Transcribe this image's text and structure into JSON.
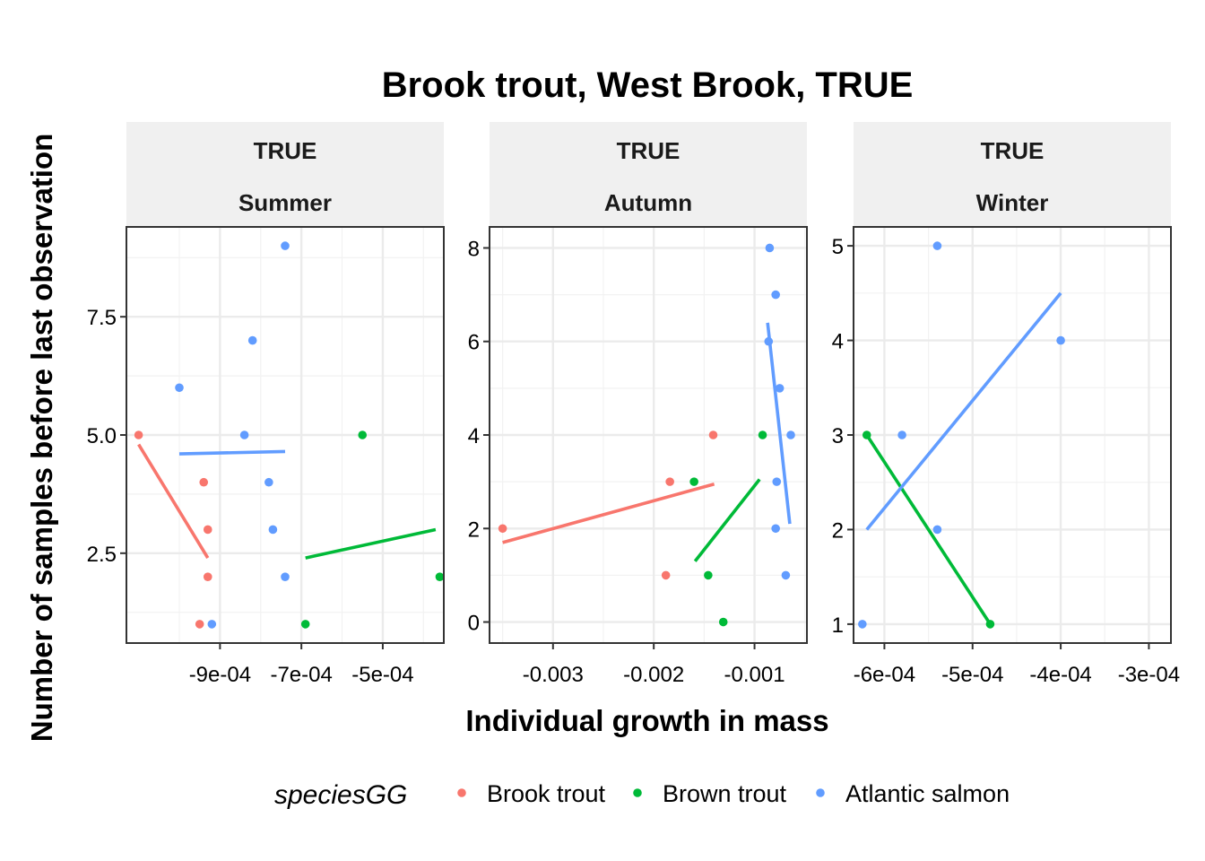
{
  "chart_data": {
    "type": "scatter",
    "title": "Brook trout, West Brook, TRUE",
    "xlabel": "Individual growth in mass",
    "ylabel": "Number of samples before last observation",
    "legend": {
      "title": "speciesGG",
      "placement": "bottom",
      "entries": [
        {
          "name": "Brook trout",
          "color": "#F8766D"
        },
        {
          "name": "Brown trout",
          "color": "#00BA38"
        },
        {
          "name": "Atlantic salmon",
          "color": "#619CFF"
        }
      ]
    },
    "grid": true,
    "panels": [
      {
        "strip_top": "TRUE",
        "strip_bottom": "Summer",
        "xlim": [
          -0.00113,
          -0.00035
        ],
        "ylim": [
          0.6,
          9.4
        ],
        "xticks": [
          {
            "value": -0.0009,
            "label": "-9e-04"
          },
          {
            "value": -0.0007,
            "label": "-7e-04"
          },
          {
            "value": -0.0005,
            "label": "-5e-04"
          }
        ],
        "yticks": [
          {
            "value": 2.5,
            "label": "2.5"
          },
          {
            "value": 5.0,
            "label": "5.0"
          },
          {
            "value": 7.5,
            "label": "7.5"
          }
        ],
        "series": [
          {
            "name": "Brook trout",
            "color": "#F8766D",
            "points": [
              [
                -0.0011,
                5
              ],
              [
                -0.00094,
                4
              ],
              [
                -0.00093,
                3
              ],
              [
                -0.00093,
                2
              ],
              [
                -0.00095,
                1
              ]
            ],
            "fit": [
              [
                -0.0011,
                4.8
              ],
              [
                -0.00093,
                2.4
              ]
            ]
          },
          {
            "name": "Brown trout",
            "color": "#00BA38",
            "points": [
              [
                -0.00055,
                5
              ],
              [
                -0.00069,
                1
              ],
              [
                -0.00036,
                2
              ]
            ],
            "fit": [
              [
                -0.00069,
                2.4
              ],
              [
                -0.00037,
                3.0
              ]
            ]
          },
          {
            "name": "Atlantic salmon",
            "color": "#619CFF",
            "points": [
              [
                -0.00074,
                9
              ],
              [
                -0.00082,
                7
              ],
              [
                -0.001,
                6
              ],
              [
                -0.00084,
                5
              ],
              [
                -0.00078,
                4
              ],
              [
                -0.00077,
                3
              ],
              [
                -0.00074,
                2
              ],
              [
                -0.00092,
                1
              ]
            ],
            "fit": [
              [
                -0.001,
                4.6
              ],
              [
                -0.00074,
                4.65
              ]
            ]
          }
        ]
      },
      {
        "strip_top": "TRUE",
        "strip_bottom": "Autumn",
        "xlim": [
          -0.00363,
          -0.00048
        ],
        "ylim": [
          -0.45,
          8.45
        ],
        "xticks": [
          {
            "value": -0.003,
            "label": "-0.003"
          },
          {
            "value": -0.002,
            "label": "-0.002"
          },
          {
            "value": -0.001,
            "label": "-0.001"
          }
        ],
        "yticks": [
          {
            "value": 0,
            "label": "0"
          },
          {
            "value": 2,
            "label": "2"
          },
          {
            "value": 4,
            "label": "4"
          },
          {
            "value": 6,
            "label": "6"
          },
          {
            "value": 8,
            "label": "8"
          }
        ],
        "series": [
          {
            "name": "Brook trout",
            "color": "#F8766D",
            "points": [
              [
                -0.0035,
                2
              ],
              [
                -0.00184,
                3
              ],
              [
                -0.00188,
                1
              ],
              [
                -0.00141,
                4
              ]
            ],
            "fit": [
              [
                -0.0035,
                1.7
              ],
              [
                -0.0014,
                2.95
              ]
            ]
          },
          {
            "name": "Brown trout",
            "color": "#00BA38",
            "points": [
              [
                -0.0016,
                3
              ],
              [
                -0.00146,
                1
              ],
              [
                -0.00131,
                0
              ],
              [
                -0.00092,
                4
              ]
            ],
            "fit": [
              [
                -0.00159,
                1.3
              ],
              [
                -0.00095,
                3.05
              ]
            ]
          },
          {
            "name": "Atlantic salmon",
            "color": "#619CFF",
            "points": [
              [
                -0.00085,
                8
              ],
              [
                -0.00079,
                7
              ],
              [
                -0.00086,
                6
              ],
              [
                -0.00075,
                5
              ],
              [
                -0.00064,
                4
              ],
              [
                -0.00078,
                3
              ],
              [
                -0.00079,
                2
              ],
              [
                -0.00069,
                1
              ]
            ],
            "fit": [
              [
                -0.00087,
                6.4
              ],
              [
                -0.00065,
                2.1
              ]
            ]
          }
        ]
      },
      {
        "strip_top": "TRUE",
        "strip_bottom": "Winter",
        "xlim": [
          -0.000635,
          -0.000275
        ],
        "ylim": [
          0.8,
          5.2
        ],
        "xticks": [
          {
            "value": -0.0006,
            "label": "-6e-04"
          },
          {
            "value": -0.0005,
            "label": "-5e-04"
          },
          {
            "value": -0.0004,
            "label": "-4e-04"
          },
          {
            "value": -0.0003,
            "label": "-3e-04"
          }
        ],
        "yticks": [
          {
            "value": 1,
            "label": "1"
          },
          {
            "value": 2,
            "label": "2"
          },
          {
            "value": 3,
            "label": "3"
          },
          {
            "value": 4,
            "label": "4"
          },
          {
            "value": 5,
            "label": "5"
          }
        ],
        "series": [
          {
            "name": "Brook trout",
            "color": "#F8766D",
            "points": [],
            "fit": []
          },
          {
            "name": "Brown trout",
            "color": "#00BA38",
            "points": [
              [
                -0.00062,
                3
              ],
              [
                -0.00048,
                1
              ]
            ],
            "fit": [
              [
                -0.00062,
                3.0
              ],
              [
                -0.00048,
                1.0
              ]
            ]
          },
          {
            "name": "Atlantic salmon",
            "color": "#619CFF",
            "points": [
              [
                -0.00054,
                5
              ],
              [
                -0.0004,
                4
              ],
              [
                -0.00058,
                3
              ],
              [
                -0.00054,
                2
              ],
              [
                -0.000625,
                1
              ]
            ],
            "fit": [
              [
                -0.00062,
                2.0
              ],
              [
                -0.0004,
                4.5
              ]
            ]
          }
        ]
      }
    ]
  }
}
